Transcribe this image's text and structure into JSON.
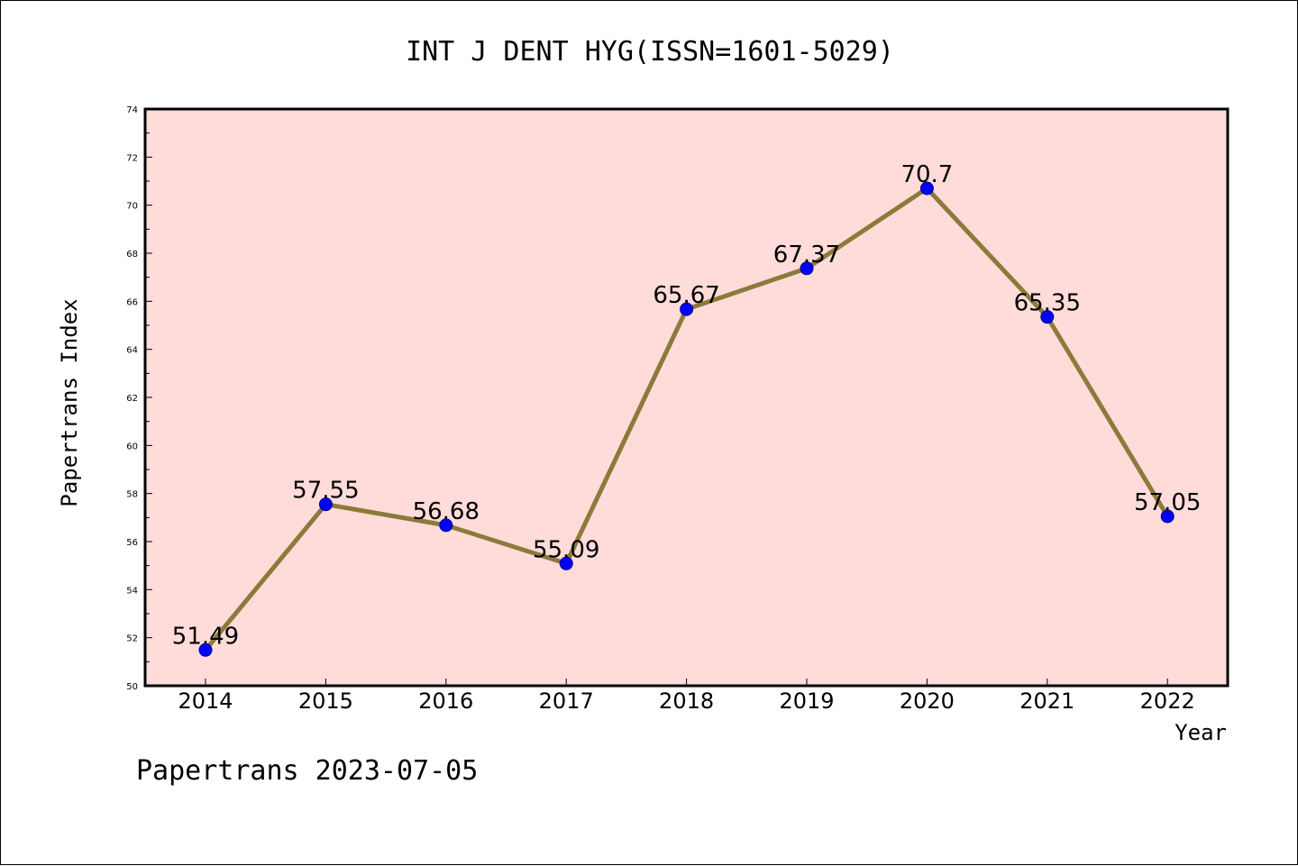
{
  "chart_data": {
    "type": "line",
    "title": "INT J DENT HYG(ISSN=1601-5029)",
    "xlabel": "Year",
    "ylabel": "Papertrans Index",
    "x": [
      "2014",
      "2015",
      "2016",
      "2017",
      "2018",
      "2019",
      "2020",
      "2021",
      "2022"
    ],
    "values": [
      51.49,
      57.55,
      56.68,
      55.09,
      65.67,
      67.37,
      70.7,
      65.35,
      57.05
    ],
    "data_labels": [
      "51.49",
      "57.55",
      "56.68",
      "55.09",
      "65.67",
      "67.37",
      "70.7",
      "65.35",
      "57.05"
    ],
    "ylim": [
      50,
      74
    ],
    "yticks": [
      "50",
      "52",
      "54",
      "56",
      "58",
      "60",
      "62",
      "64",
      "66",
      "68",
      "70",
      "72",
      "74"
    ],
    "grid": false,
    "colors": {
      "plot_background": "#ffdcda",
      "line": "#8c7a3a",
      "marker": "#0000ff"
    }
  },
  "footer": "Papertrans 2023-07-05"
}
